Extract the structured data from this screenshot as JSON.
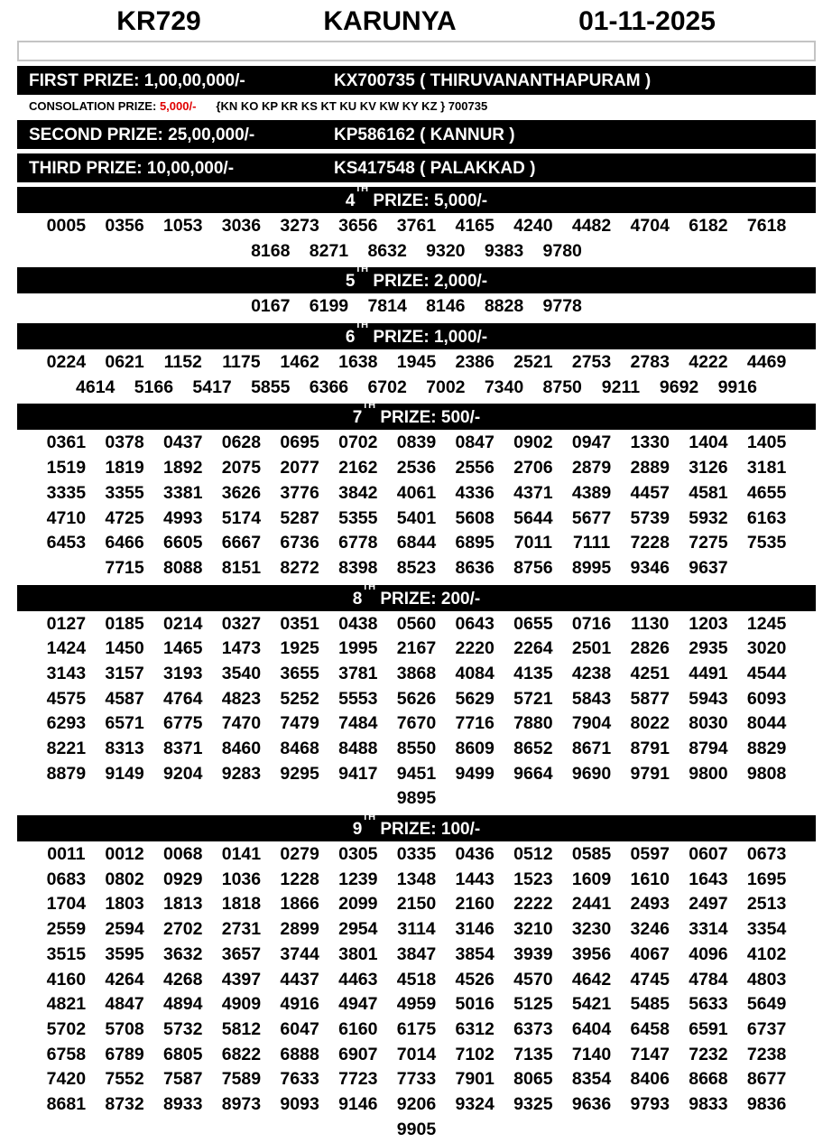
{
  "header": {
    "draw_code": "KR729",
    "lottery_name": "KARUNYA",
    "date": "01-11-2025"
  },
  "colors": {
    "bar": "#000000",
    "consolation_amount": "#e00000"
  },
  "top_prizes": [
    {
      "label": "FIRST PRIZE: 1,00,00,000/-",
      "ticket": "KX700735 ( THIRUVANANTHAPURAM )"
    },
    {
      "label": "SECOND PRIZE: 25,00,000/-",
      "ticket": "KP586162 ( KANNUR )"
    },
    {
      "label": "THIRD PRIZE: 10,00,000/-",
      "ticket": "KS417548 ( PALAKKAD )"
    }
  ],
  "consolation": {
    "label": "CONSOLATION PRIZE: ",
    "amount": "5,000/-",
    "series": "{KN KO KP KR KS KT KU KV KW KY KZ } 700735"
  },
  "prize_sections": [
    {
      "ordinal": "4",
      "suffix": "TH",
      "label": " PRIZE: 5,000/-",
      "numbers": [
        "0005",
        "0356",
        "1053",
        "3036",
        "3273",
        "3656",
        "3761",
        "4165",
        "4240",
        "4482",
        "4704",
        "6182",
        "7618",
        "8168",
        "8271",
        "8632",
        "9320",
        "9383",
        "9780"
      ]
    },
    {
      "ordinal": "5",
      "suffix": "TH",
      "label": " PRIZE: 2,000/-",
      "numbers": [
        "0167",
        "6199",
        "7814",
        "8146",
        "8828",
        "9778"
      ]
    },
    {
      "ordinal": "6",
      "suffix": "TH",
      "label": " PRIZE: 1,000/-",
      "numbers": [
        "0224",
        "0621",
        "1152",
        "1175",
        "1462",
        "1638",
        "1945",
        "2386",
        "2521",
        "2753",
        "2783",
        "4222",
        "4469",
        "4614",
        "5166",
        "5417",
        "5855",
        "6366",
        "6702",
        "7002",
        "7340",
        "8750",
        "9211",
        "9692",
        "9916"
      ]
    },
    {
      "ordinal": "7",
      "suffix": "TH",
      "label": " PRIZE: 500/-",
      "numbers": [
        "0361",
        "0378",
        "0437",
        "0628",
        "0695",
        "0702",
        "0839",
        "0847",
        "0902",
        "0947",
        "1330",
        "1404",
        "1405",
        "1519",
        "1819",
        "1892",
        "2075",
        "2077",
        "2162",
        "2536",
        "2556",
        "2706",
        "2879",
        "2889",
        "3126",
        "3181",
        "3335",
        "3355",
        "3381",
        "3626",
        "3776",
        "3842",
        "4061",
        "4336",
        "4371",
        "4389",
        "4457",
        "4581",
        "4655",
        "4710",
        "4725",
        "4993",
        "5174",
        "5287",
        "5355",
        "5401",
        "5608",
        "5644",
        "5677",
        "5739",
        "5932",
        "6163",
        "6453",
        "6466",
        "6605",
        "6667",
        "6736",
        "6778",
        "6844",
        "6895",
        "7011",
        "7111",
        "7228",
        "7275",
        "7535",
        "7715",
        "8088",
        "8151",
        "8272",
        "8398",
        "8523",
        "8636",
        "8756",
        "8995",
        "9346",
        "9637"
      ]
    },
    {
      "ordinal": "8",
      "suffix": "TH",
      "label": " PRIZE: 200/-",
      "numbers": [
        "0127",
        "0185",
        "0214",
        "0327",
        "0351",
        "0438",
        "0560",
        "0643",
        "0655",
        "0716",
        "1130",
        "1203",
        "1245",
        "1424",
        "1450",
        "1465",
        "1473",
        "1925",
        "1995",
        "2167",
        "2220",
        "2264",
        "2501",
        "2826",
        "2935",
        "3020",
        "3143",
        "3157",
        "3193",
        "3540",
        "3655",
        "3781",
        "3868",
        "4084",
        "4135",
        "4238",
        "4251",
        "4491",
        "4544",
        "4575",
        "4587",
        "4764",
        "4823",
        "5252",
        "5553",
        "5626",
        "5629",
        "5721",
        "5843",
        "5877",
        "5943",
        "6093",
        "6293",
        "6571",
        "6775",
        "7470",
        "7479",
        "7484",
        "7670",
        "7716",
        "7880",
        "7904",
        "8022",
        "8030",
        "8044",
        "8221",
        "8313",
        "8371",
        "8460",
        "8468",
        "8488",
        "8550",
        "8609",
        "8652",
        "8671",
        "8791",
        "8794",
        "8829",
        "8879",
        "9149",
        "9204",
        "9283",
        "9295",
        "9417",
        "9451",
        "9499",
        "9664",
        "9690",
        "9791",
        "9800",
        "9808",
        "9895"
      ]
    },
    {
      "ordinal": "9",
      "suffix": "TH",
      "label": " PRIZE: 100/-",
      "numbers": [
        "0011",
        "0012",
        "0068",
        "0141",
        "0279",
        "0305",
        "0335",
        "0436",
        "0512",
        "0585",
        "0597",
        "0607",
        "0673",
        "0683",
        "0802",
        "0929",
        "1036",
        "1228",
        "1239",
        "1348",
        "1443",
        "1523",
        "1609",
        "1610",
        "1643",
        "1695",
        "1704",
        "1803",
        "1813",
        "1818",
        "1866",
        "2099",
        "2150",
        "2160",
        "2222",
        "2441",
        "2493",
        "2497",
        "2513",
        "2559",
        "2594",
        "2702",
        "2731",
        "2899",
        "2954",
        "3114",
        "3146",
        "3210",
        "3230",
        "3246",
        "3314",
        "3354",
        "3515",
        "3595",
        "3632",
        "3657",
        "3744",
        "3801",
        "3847",
        "3854",
        "3939",
        "3956",
        "4067",
        "4096",
        "4102",
        "4160",
        "4264",
        "4268",
        "4397",
        "4437",
        "4463",
        "4518",
        "4526",
        "4570",
        "4642",
        "4745",
        "4784",
        "4803",
        "4821",
        "4847",
        "4894",
        "4909",
        "4916",
        "4947",
        "4959",
        "5016",
        "5125",
        "5421",
        "5485",
        "5633",
        "5649",
        "5702",
        "5708",
        "5732",
        "5812",
        "6047",
        "6160",
        "6175",
        "6312",
        "6373",
        "6404",
        "6458",
        "6591",
        "6737",
        "6758",
        "6789",
        "6805",
        "6822",
        "6888",
        "6907",
        "7014",
        "7102",
        "7135",
        "7140",
        "7147",
        "7232",
        "7238",
        "7420",
        "7552",
        "7587",
        "7589",
        "7633",
        "7723",
        "7733",
        "7901",
        "8065",
        "8354",
        "8406",
        "8668",
        "8677",
        "8681",
        "8732",
        "8933",
        "8973",
        "9093",
        "9146",
        "9206",
        "9324",
        "9325",
        "9636",
        "9793",
        "9833",
        "9836",
        "9905"
      ]
    }
  ]
}
